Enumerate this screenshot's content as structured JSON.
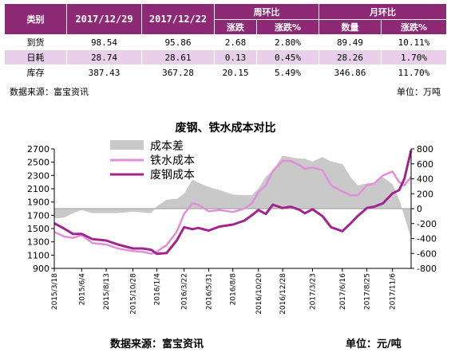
{
  "table": {
    "header_row1": {
      "category": "类别",
      "date1": "2017/12/29",
      "date2": "2017/12/22",
      "weekly": "周环比",
      "monthly": "月环比"
    },
    "header_row2": {
      "w_change": "涨跌",
      "w_pct": "涨跌%",
      "m_qty": "数量",
      "m_pct": "涨跌%"
    },
    "rows": [
      {
        "name": "到货",
        "v1": "98.54",
        "v2": "95.86",
        "wc": "2.68",
        "wp": "2.80%",
        "mq": "89.49",
        "mp": "10.11%"
      },
      {
        "name": "日耗",
        "v1": "28.74",
        "v2": "28.61",
        "wc": "0.13",
        "wp": "0.45%",
        "mq": "28.26",
        "mp": "1.70%"
      },
      {
        "name": "库存",
        "v1": "387.43",
        "v2": "367.28",
        "wc": "20.15",
        "wp": "5.49%",
        "mq": "346.86",
        "mp": "11.70%"
      }
    ],
    "source": "数据来源：富宝资讯",
    "unit": "单位：万吨"
  },
  "chart_data": {
    "type": "line",
    "title": "废钢、铁水成本对比",
    "left_axis": {
      "ticks": [
        "2700",
        "2500",
        "2300",
        "2100",
        "1900",
        "1700",
        "1500",
        "1300",
        "1100",
        "900"
      ],
      "range": [
        900,
        2700
      ]
    },
    "right_axis": {
      "ticks": [
        "800",
        "600",
        "400",
        "200",
        "0",
        "-200",
        "-400",
        "-600",
        "-800"
      ],
      "range": [
        -800,
        800
      ]
    },
    "x_tick_labels": [
      "2015/3/18",
      "2015/6/4",
      "2015/8/13",
      "2015/10/28",
      "2016/1/4",
      "2016/3/22",
      "2016/5/31",
      "2016/8/8",
      "2016/10/20",
      "2016/12/28",
      "2017/3/23",
      "2017/6/16",
      "2017/8/25",
      "2017/11/6"
    ],
    "legend": [
      "成本差",
      "铁水成本",
      "废钢成本"
    ],
    "colors": {
      "diff": "#c9c9c9",
      "iron": "#e28fd9",
      "scrap": "#a2248f"
    },
    "x_start": "2015/3/18",
    "x_end": "2017/12/29",
    "series": [
      {
        "name": "铁水成本",
        "axis": "left",
        "x": [
          "2015/3/18",
          "2015/4/15",
          "2015/5/10",
          "2015/6/4",
          "2015/7/5",
          "2015/8/13",
          "2015/9/15",
          "2015/10/28",
          "2015/11/25",
          "2015/12/20",
          "2016/1/4",
          "2016/2/1",
          "2016/3/1",
          "2016/3/22",
          "2016/4/15",
          "2016/5/1",
          "2016/5/31",
          "2016/7/1",
          "2016/8/8",
          "2016/9/10",
          "2016/10/1",
          "2016/10/20",
          "2016/11/10",
          "2016/11/30",
          "2016/12/28",
          "2017/1/20",
          "2017/2/15",
          "2017/3/1",
          "2017/3/23",
          "2017/4/20",
          "2017/5/15",
          "2017/6/16",
          "2017/7/10",
          "2017/7/30",
          "2017/8/25",
          "2017/9/15",
          "2017/10/10",
          "2017/11/6",
          "2017/11/25",
          "2017/12/10",
          "2017/12/29"
        ],
        "y": [
          1450,
          1380,
          1360,
          1400,
          1280,
          1260,
          1200,
          1160,
          1150,
          1120,
          1150,
          1250,
          1450,
          1720,
          1880,
          1860,
          1760,
          1780,
          1750,
          1800,
          1880,
          2050,
          2150,
          2370,
          2520,
          2520,
          2450,
          2400,
          2420,
          2380,
          2150,
          2060,
          2000,
          2000,
          2150,
          2180,
          2300,
          2360,
          2200,
          2150,
          2280
        ]
      },
      {
        "name": "废钢成本",
        "axis": "left",
        "x": [
          "2015/3/18",
          "2015/4/15",
          "2015/5/10",
          "2015/6/4",
          "2015/7/5",
          "2015/8/13",
          "2015/9/15",
          "2015/10/28",
          "2015/11/25",
          "2015/12/20",
          "2016/1/4",
          "2016/2/1",
          "2016/3/1",
          "2016/3/22",
          "2016/4/15",
          "2016/5/1",
          "2016/5/31",
          "2016/7/1",
          "2016/8/8",
          "2016/9/10",
          "2016/10/1",
          "2016/10/20",
          "2016/11/10",
          "2016/11/30",
          "2016/12/28",
          "2017/1/20",
          "2017/2/15",
          "2017/3/1",
          "2017/3/23",
          "2017/4/20",
          "2017/5/15",
          "2017/6/16",
          "2017/7/10",
          "2017/7/30",
          "2017/8/25",
          "2017/9/15",
          "2017/10/10",
          "2017/11/6",
          "2017/11/25",
          "2017/12/10",
          "2017/12/29"
        ],
        "y": [
          1580,
          1500,
          1420,
          1420,
          1340,
          1320,
          1260,
          1200,
          1200,
          1180,
          1120,
          1130,
          1320,
          1520,
          1490,
          1510,
          1470,
          1530,
          1560,
          1620,
          1700,
          1780,
          1720,
          1860,
          1810,
          1830,
          1780,
          1730,
          1790,
          1690,
          1520,
          1460,
          1580,
          1690,
          1810,
          1830,
          1880,
          2030,
          2080,
          2250,
          2680
        ]
      },
      {
        "name": "成本差",
        "axis": "right",
        "x": [
          "2015/3/18",
          "2015/4/15",
          "2015/5/10",
          "2015/6/4",
          "2015/7/5",
          "2015/8/13",
          "2015/9/15",
          "2015/10/28",
          "2015/11/25",
          "2015/12/20",
          "2016/1/4",
          "2016/2/1",
          "2016/3/1",
          "2016/3/22",
          "2016/4/15",
          "2016/5/1",
          "2016/5/31",
          "2016/7/1",
          "2016/8/8",
          "2016/9/10",
          "2016/10/1",
          "2016/10/20",
          "2016/11/10",
          "2016/11/30",
          "2016/12/28",
          "2017/1/20",
          "2017/2/15",
          "2017/3/1",
          "2017/3/23",
          "2017/4/20",
          "2017/5/15",
          "2017/6/16",
          "2017/7/10",
          "2017/7/30",
          "2017/8/25",
          "2017/9/15",
          "2017/10/10",
          "2017/11/6",
          "2017/11/25",
          "2017/12/10",
          "2017/12/29"
        ],
        "y": [
          -130,
          -120,
          -60,
          -20,
          -60,
          -60,
          -60,
          -40,
          -50,
          -60,
          30,
          120,
          130,
          200,
          390,
          350,
          290,
          250,
          190,
          180,
          180,
          270,
          430,
          510,
          710,
          690,
          670,
          670,
          630,
          690,
          630,
          600,
          420,
          310,
          340,
          350,
          420,
          330,
          120,
          -100,
          -400
        ]
      }
    ]
  },
  "footer": {
    "source": "数据来源：富宝资讯",
    "unit": "单位：元/吨"
  }
}
